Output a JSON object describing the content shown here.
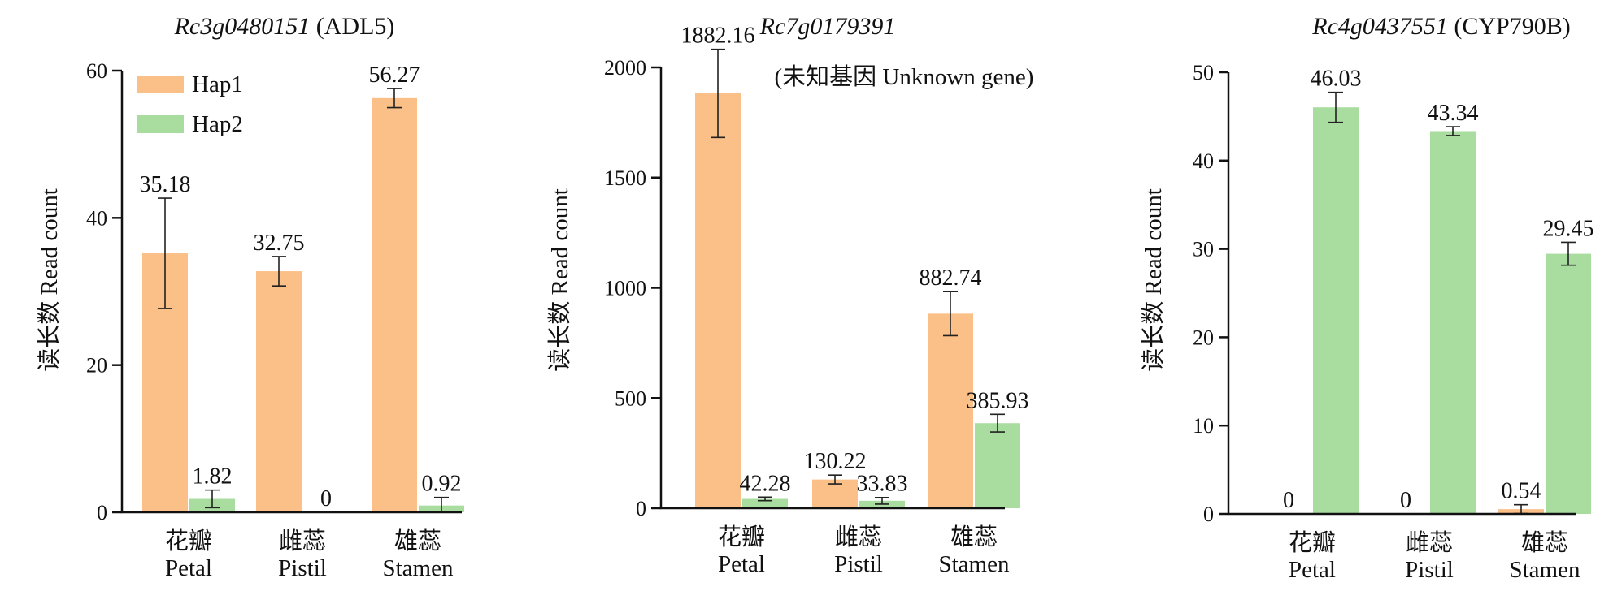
{
  "colors": {
    "hap1": "#FBBF88",
    "hap2": "#A9DDA0",
    "axis": "#111111"
  },
  "legend": [
    {
      "key": "hap1",
      "label": "Hap1"
    },
    {
      "key": "hap2",
      "label": "Hap2"
    }
  ],
  "chart_data": [
    {
      "type": "bar",
      "title": "Rc3g0480151",
      "title_suffix": "(ADL5)",
      "subtitle": "",
      "ylabel": "读长数 Read count",
      "ylim": [
        0,
        60
      ],
      "yticks": [
        0,
        20,
        40,
        60
      ],
      "categories": [
        "花瓣",
        "雌蕊",
        "雄蕊"
      ],
      "categories_en": [
        "Petal",
        "Pistil",
        "Stamen"
      ],
      "legend_position": "top-left",
      "series": [
        {
          "name": "Hap1",
          "values": [
            35.18,
            32.75,
            56.27
          ],
          "errors": [
            7.5,
            2.0,
            1.3
          ],
          "labels": [
            "35.18",
            "32.75",
            "56.27"
          ]
        },
        {
          "name": "Hap2",
          "values": [
            1.82,
            0,
            0.92
          ],
          "errors": [
            1.2,
            0,
            1.1
          ],
          "labels": [
            "1.82",
            "0",
            "0.92"
          ]
        }
      ]
    },
    {
      "type": "bar",
      "title": "Rc7g0179391",
      "title_suffix": "",
      "subtitle": "(未知基因  Unknown gene)",
      "ylabel": "读长数 Read count",
      "ylim": [
        0,
        2000
      ],
      "yticks": [
        0,
        500,
        1000,
        1500,
        2000
      ],
      "categories": [
        "花瓣",
        "雌蕊",
        "雄蕊"
      ],
      "categories_en": [
        "Petal",
        "Pistil",
        "Stamen"
      ],
      "series": [
        {
          "name": "Hap1",
          "values": [
            1882.16,
            130.22,
            882.74
          ],
          "errors": [
            200,
            20,
            100
          ],
          "labels": [
            "1882.16",
            "130.22",
            "882.74"
          ]
        },
        {
          "name": "Hap2",
          "values": [
            42.28,
            33.83,
            385.93
          ],
          "errors": [
            8,
            15,
            40
          ],
          "labels": [
            "42.28",
            "33.83",
            "385.93"
          ]
        }
      ]
    },
    {
      "type": "bar",
      "title": "Rc4g0437551",
      "title_suffix": "(CYP790B)",
      "subtitle": "",
      "ylabel": "读长数 Read count",
      "ylim": [
        0,
        50
      ],
      "yticks": [
        0,
        10,
        20,
        30,
        40,
        50
      ],
      "categories": [
        "花瓣",
        "雌蕊",
        "雄蕊"
      ],
      "categories_en": [
        "Petal",
        "Pistil",
        "Stamen"
      ],
      "series": [
        {
          "name": "Hap1",
          "values": [
            0,
            0,
            0.54
          ],
          "errors": [
            0,
            0,
            0.5
          ],
          "labels": [
            "0",
            "0",
            "0.54"
          ]
        },
        {
          "name": "Hap2",
          "values": [
            46.03,
            43.34,
            29.45
          ],
          "errors": [
            1.7,
            0.5,
            1.3
          ],
          "labels": [
            "46.03",
            "43.34",
            "29.45"
          ]
        }
      ]
    }
  ]
}
